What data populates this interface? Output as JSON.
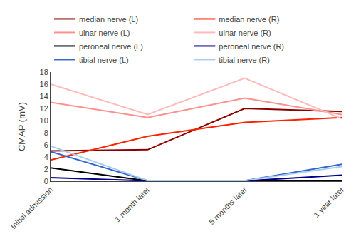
{
  "chart_data": {
    "type": "line",
    "categories": [
      "Initial admission",
      "1 month later",
      "5 months later",
      "1 year later"
    ],
    "series": [
      {
        "name": "median nerve (L)",
        "color": "#8B0000",
        "values": [
          5.0,
          5.2,
          12.0,
          11.5
        ]
      },
      {
        "name": "median nerve (R)",
        "color": "#FF2200",
        "values": [
          3.5,
          7.4,
          9.7,
          10.5
        ]
      },
      {
        "name": "ulnar nerve (L)",
        "color": "#FF9090",
        "values": [
          13.0,
          10.5,
          13.7,
          11.0
        ]
      },
      {
        "name": "ulnar nerve (R)",
        "color": "#FFBBBB",
        "values": [
          16.0,
          11.0,
          17.0,
          10.3
        ]
      },
      {
        "name": "peroneal nerve (L)",
        "color": "#000000",
        "values": [
          2.2,
          0.05,
          0.05,
          0.05
        ]
      },
      {
        "name": "peroneal nerve (R)",
        "color": "#00008B",
        "values": [
          0.6,
          0.05,
          0.05,
          1.0
        ]
      },
      {
        "name": "tibial nerve (L)",
        "color": "#3366CC",
        "values": [
          4.9,
          0.1,
          0.1,
          2.8
        ]
      },
      {
        "name": "tibial nerve (R)",
        "color": "#AACCEE",
        "values": [
          5.8,
          0.1,
          0.1,
          2.4
        ]
      }
    ],
    "ylabel": "CMAP (mV)",
    "ylim": [
      0,
      18
    ],
    "yticks": [
      0,
      2,
      4,
      6,
      8,
      10,
      12,
      14,
      16,
      18
    ],
    "grid": false,
    "legend": "top"
  }
}
